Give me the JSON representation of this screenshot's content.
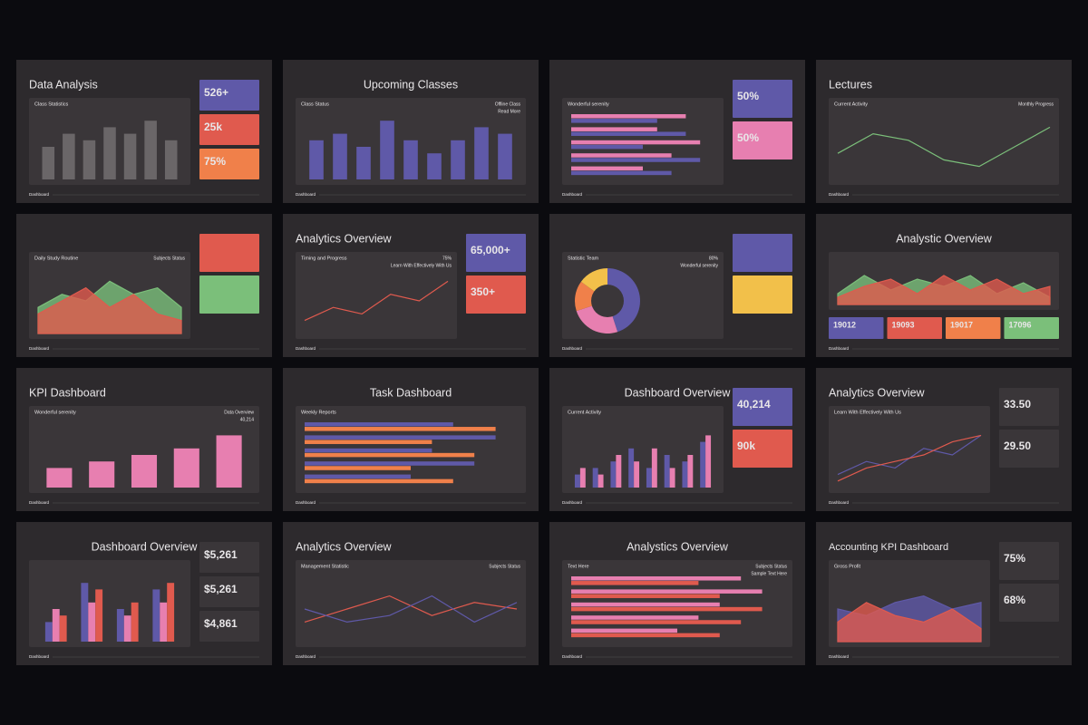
{
  "footer": "Dashboard",
  "slides": [
    {
      "title": "Data Analysis",
      "align": "left",
      "panels": [
        "Class Statistics"
      ],
      "card_layout": "column",
      "cards": [
        {
          "text": "526+",
          "color": "#5f59a8"
        },
        {
          "text": "25k",
          "color": "#e05a4e"
        },
        {
          "text": "75%",
          "color": "#f0804a"
        }
      ],
      "chart": {
        "type": "bar",
        "series": [
          {
            "color": "#6a6668",
            "values": [
              5,
              7,
              6,
              8,
              7,
              9,
              6
            ]
          }
        ]
      }
    },
    {
      "title": "Upcoming Classes",
      "align": "center",
      "panels": [
        "Class Status",
        "Offline Class",
        "Read More"
      ],
      "card_layout": "column",
      "cards": [],
      "chart": {
        "type": "bar",
        "series": [
          {
            "color": "#5f59a8",
            "values": [
              6,
              7,
              5,
              9,
              6,
              4,
              6,
              8,
              7
            ]
          }
        ]
      }
    },
    {
      "title": null,
      "align": "left",
      "panels": [
        "Wonderful serenity"
      ],
      "card_layout": "column",
      "cards": [
        {
          "text": "50%",
          "color": "#5f59a8"
        },
        {
          "text": "50%",
          "color": "#e77fb0"
        }
      ],
      "chart": {
        "type": "hbar",
        "series": [
          {
            "color": "#e77fb0",
            "values": [
              8,
              6,
              9,
              7,
              5
            ]
          },
          {
            "color": "#5f59a8",
            "values": [
              6,
              8,
              5,
              9,
              7
            ]
          }
        ]
      }
    },
    {
      "title": "Lectures",
      "align": "left",
      "panels": [
        "Current Activity",
        "Monthly Progress"
      ],
      "card_layout": "column",
      "cards": [],
      "chart": {
        "type": "line",
        "series": [
          {
            "color": "#7bbf7a",
            "values": [
              4,
              7,
              6,
              3,
              2,
              5,
              8
            ]
          }
        ]
      }
    },
    {
      "title": null,
      "align": "left",
      "panels": [
        "Daily Study Routine",
        "Subjects Status"
      ],
      "card_layout": "column",
      "cards": [
        {
          "text": "",
          "color": "#e05a4e"
        },
        {
          "text": "",
          "color": "#7bbf7a"
        }
      ],
      "chart": {
        "type": "area",
        "series": [
          {
            "color": "#7bbf7a",
            "values": [
              4,
              6,
              5,
              8,
              6,
              7,
              4
            ]
          },
          {
            "color": "#e05a4e",
            "values": [
              3,
              5,
              7,
              4,
              6,
              3,
              2
            ]
          }
        ]
      }
    },
    {
      "title": "Analytics Overview",
      "align": "left",
      "panels": [
        "Timing and Progress",
        "75%",
        "Learn With Effectively With Us"
      ],
      "card_layout": "column",
      "cards": [
        {
          "text": "65,000+",
          "color": "#5f59a8"
        },
        {
          "text": "350+",
          "color": "#e05a4e"
        }
      ],
      "chart": {
        "type": "line",
        "series": [
          {
            "color": "#e05a4e",
            "values": [
              2,
              4,
              3,
              6,
              5,
              8
            ]
          }
        ]
      }
    },
    {
      "title": null,
      "align": "left",
      "panels": [
        "Statistic Team",
        "80%",
        "Wonderful serenity"
      ],
      "card_layout": "column",
      "cards": [
        {
          "text": "",
          "color": "#5f59a8"
        },
        {
          "text": "",
          "color": "#f2c04a"
        }
      ],
      "chart": {
        "type": "pie",
        "series": [
          {
            "color": "#5f59a8",
            "values": [
              45
            ]
          },
          {
            "color": "#e77fb0",
            "values": [
              25
            ]
          },
          {
            "color": "#f0804a",
            "values": [
              15
            ]
          },
          {
            "color": "#f2c04a",
            "values": [
              15
            ]
          }
        ]
      }
    },
    {
      "title": "Analystic Overview",
      "align": "center",
      "panels": [],
      "card_layout": "row",
      "cards": [
        {
          "text": "19012",
          "color": "#5f59a8"
        },
        {
          "text": "19093",
          "color": "#e05a4e"
        },
        {
          "text": "19017",
          "color": "#f0804a"
        },
        {
          "text": "17096",
          "color": "#7bbf7a"
        }
      ],
      "chart": {
        "type": "area",
        "series": [
          {
            "color": "#7bbf7a",
            "values": [
              3,
              8,
              4,
              7,
              5,
              8,
              3,
              6,
              2
            ]
          },
          {
            "color": "#e05a4e",
            "values": [
              2,
              5,
              7,
              3,
              8,
              4,
              7,
              3,
              5
            ]
          }
        ]
      }
    },
    {
      "title": "KPI Dashboard",
      "align": "left",
      "panels": [
        "Wonderful serenity",
        "Data Overview",
        "40,214"
      ],
      "card_layout": "column",
      "cards": [],
      "chart": {
        "type": "bar",
        "series": [
          {
            "color": "#e77fb0",
            "values": [
              3,
              4,
              5,
              6,
              8
            ]
          }
        ]
      }
    },
    {
      "title": "Task Dashboard",
      "align": "center",
      "panels": [
        "Weekly Reports"
      ],
      "card_layout": "column",
      "cards": [],
      "chart": {
        "type": "hbar",
        "series": [
          {
            "color": "#5f59a8",
            "values": [
              7,
              9,
              6,
              8,
              5
            ]
          },
          {
            "color": "#f0804a",
            "values": [
              9,
              6,
              8,
              5,
              7
            ]
          }
        ]
      }
    },
    {
      "title": "Dashboard Overview",
      "align": "center",
      "panels": [
        "Current Activity"
      ],
      "card_layout": "column",
      "cards": [
        {
          "text": "40,214",
          "color": "#5f59a8"
        },
        {
          "text": "90k",
          "color": "#e05a4e"
        }
      ],
      "chart": {
        "type": "bar",
        "series": [
          {
            "color": "#5f59a8",
            "values": [
              2,
              3,
              4,
              6,
              3,
              5,
              4,
              7
            ]
          },
          {
            "color": "#e77fb0",
            "values": [
              3,
              2,
              5,
              4,
              6,
              3,
              5,
              8
            ]
          }
        ]
      }
    },
    {
      "title": "Analytics Overview",
      "align": "left",
      "panels": [
        "Learn With Effectively With Us"
      ],
      "card_layout": "column",
      "cards": [
        {
          "text": "33.50",
          "color": "#3a3639"
        },
        {
          "text": "29.50",
          "color": "#3a3639"
        }
      ],
      "chart": {
        "type": "line",
        "series": [
          {
            "color": "#5f59a8",
            "values": [
              2,
              4,
              3,
              6,
              5,
              8
            ]
          },
          {
            "color": "#e05a4e",
            "values": [
              1,
              3,
              4,
              5,
              7,
              8
            ]
          }
        ]
      }
    },
    {
      "title": "Dashboard Overview",
      "align": "center",
      "panels": [],
      "card_layout": "column",
      "cards": [
        {
          "text": "$5,261",
          "color": "#3a3639"
        },
        {
          "text": "$5,261",
          "color": "#3a3639"
        },
        {
          "text": "$4,861",
          "color": "#3a3639"
        }
      ],
      "chart": {
        "type": "bar",
        "series": [
          {
            "color": "#5f59a8",
            "values": [
              3,
              9,
              5,
              8
            ]
          },
          {
            "color": "#e77fb0",
            "values": [
              5,
              6,
              4,
              6
            ]
          },
          {
            "color": "#e05a4e",
            "values": [
              4,
              8,
              6,
              9
            ]
          }
        ]
      }
    },
    {
      "title": "Analytics Overview",
      "align": "left",
      "panels": [
        "Management Statistic",
        "Subjects Status"
      ],
      "card_layout": "column",
      "cards": [],
      "chart": {
        "type": "line",
        "series": [
          {
            "color": "#e05a4e",
            "values": [
              3,
              5,
              7,
              4,
              6,
              5
            ]
          },
          {
            "color": "#5f59a8",
            "values": [
              5,
              3,
              4,
              7,
              3,
              6
            ]
          }
        ]
      }
    },
    {
      "title": "Analystics Overview",
      "align": "center",
      "panels": [
        "Text Here",
        "Subjects Status",
        "Sample Text Here"
      ],
      "card_layout": "column",
      "cards": [],
      "chart": {
        "type": "hbar",
        "series": [
          {
            "color": "#e77fb0",
            "values": [
              8,
              9,
              7,
              6,
              5
            ]
          },
          {
            "color": "#e05a4e",
            "values": [
              6,
              7,
              9,
              8,
              7
            ]
          }
        ]
      }
    },
    {
      "title": "Accounting KPI Dashboard",
      "align": "left",
      "panels": [
        "Gross Profit"
      ],
      "card_layout": "column",
      "cards": [
        {
          "text": "75%",
          "color": "#3a3639"
        },
        {
          "text": "68%",
          "color": "#3a3639"
        }
      ],
      "chart": {
        "type": "area",
        "series": [
          {
            "color": "#5f59a8",
            "values": [
              5,
              4,
              6,
              7,
              5,
              6
            ]
          },
          {
            "color": "#e05a4e",
            "values": [
              3,
              6,
              4,
              3,
              5,
              2
            ]
          }
        ]
      }
    }
  ]
}
